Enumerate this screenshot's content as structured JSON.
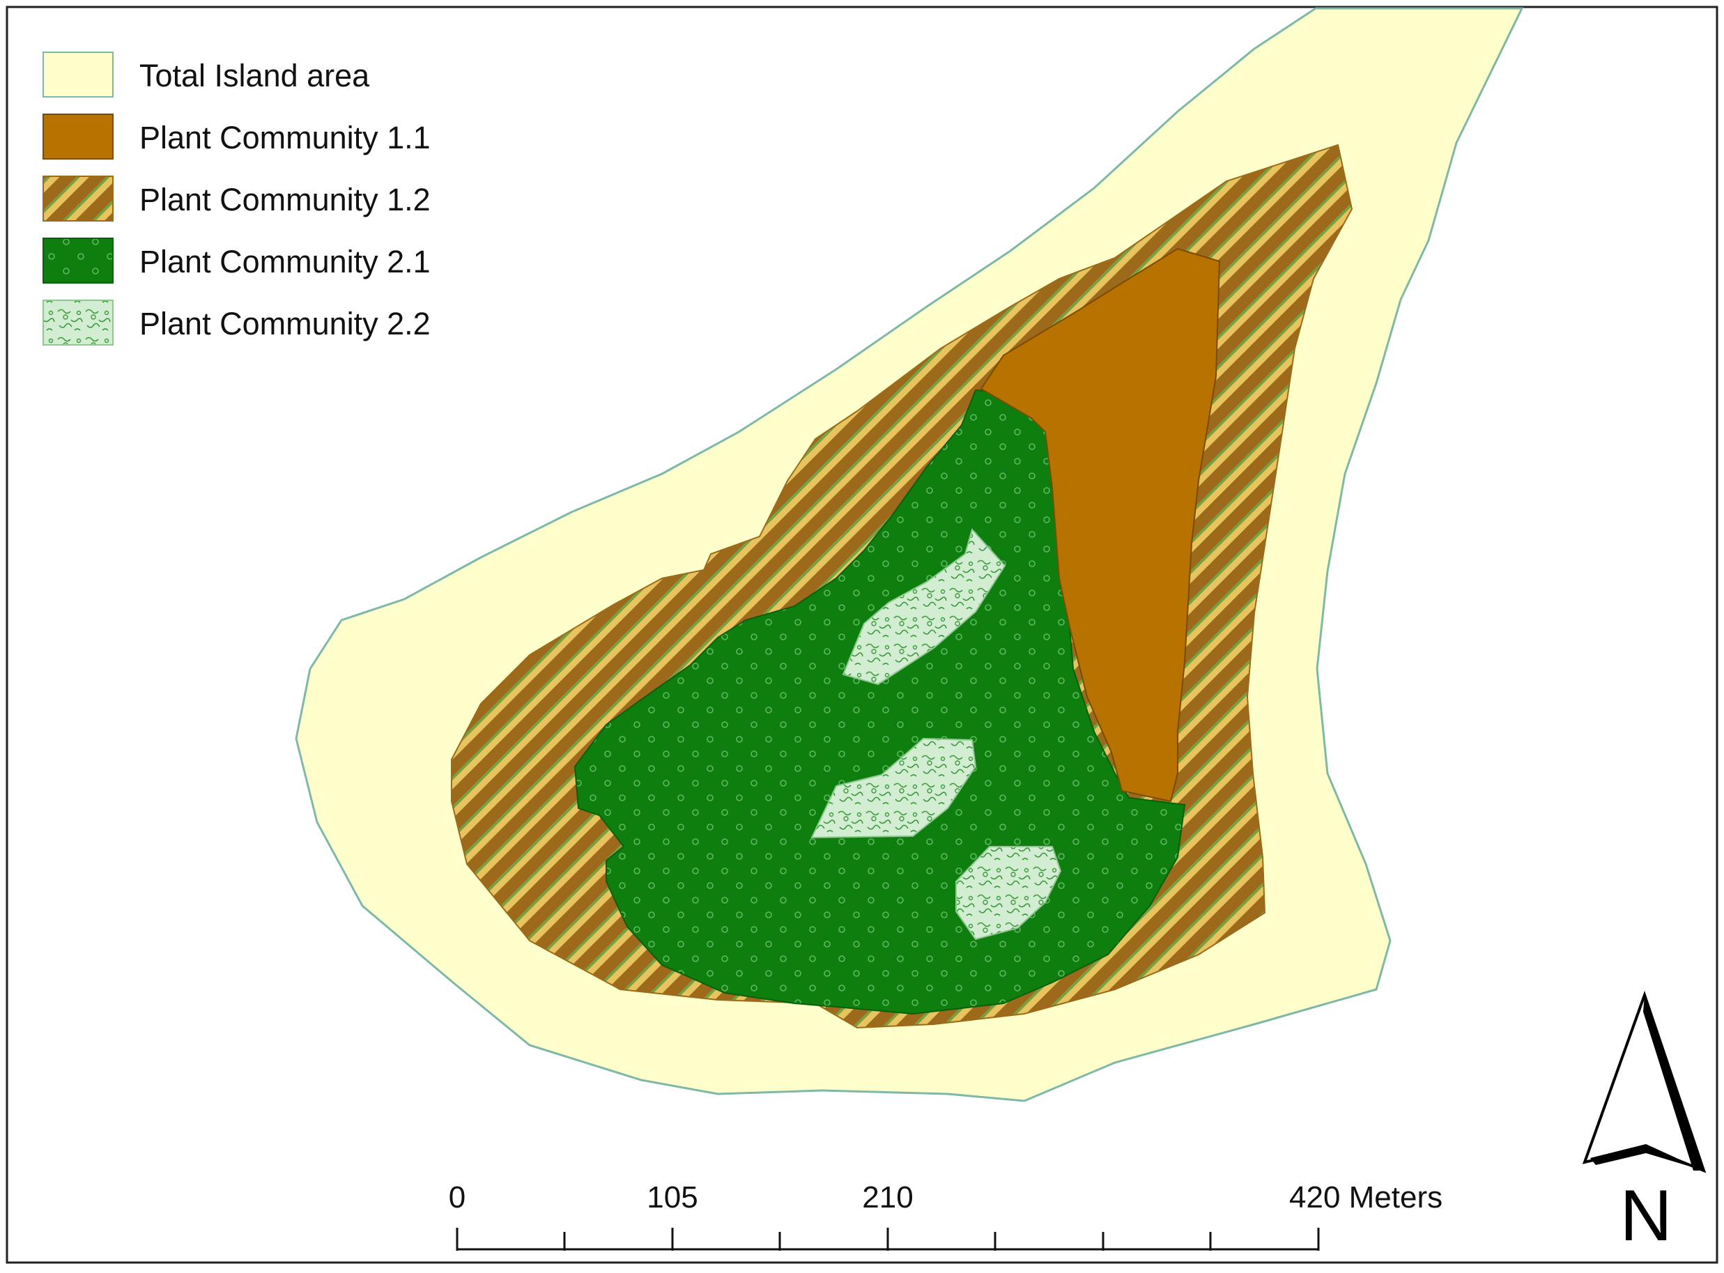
{
  "legend": {
    "items": [
      {
        "label": "Total Island area",
        "color": "#FFFFCC",
        "pattern": "solid"
      },
      {
        "label": "Plant Community 1.1",
        "color": "#B87200",
        "pattern": "solid"
      },
      {
        "label": "Plant Community 1.2",
        "color": "#B87200",
        "pattern": "diagonal-hatch"
      },
      {
        "label": "Plant Community 2.1",
        "color": "#0E7F0E",
        "pattern": "dotted-green"
      },
      {
        "label": "Plant Community 2.2",
        "color": "#D2EDD2",
        "pattern": "squiggle-light-green"
      }
    ]
  },
  "scale_bar": {
    "labels": [
      "0",
      "105",
      "210",
      "420 Meters"
    ]
  },
  "north_arrow": {
    "label": "N",
    "icon": "north-arrow-icon"
  },
  "colors": {
    "island": "#FFFFCC",
    "island_outline": "#7FB8A8",
    "community_1_1": "#B87200",
    "community_1_2_hatch": "#9C6A1A",
    "community_2_1": "#0E7F0E",
    "community_2_2": "#D2EDD2",
    "frame": "#222222"
  }
}
